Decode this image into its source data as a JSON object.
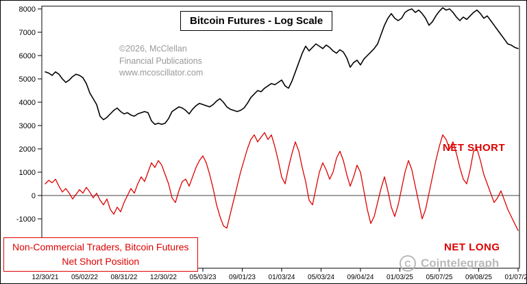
{
  "copyright": {
    "lines": [
      "©2026, McClellan",
      "Financial Publications",
      "www.mcoscillator.com"
    ]
  },
  "legend_box": {
    "line1": "Non-Commercial Traders, Bitcoin Futures",
    "line2": "Net Short Position"
  },
  "watermark": {
    "icon": "C",
    "text": "Cointelegraph"
  },
  "colors": {
    "accent_red": "#dd0000",
    "price_black": "#000000",
    "copyright_gray": "#999999",
    "watermark_gray": "#b4b4b4"
  },
  "chart_data": {
    "type": "line",
    "title": "Bitcoin Futures - Log Scale",
    "grid": false,
    "legend_position": "none",
    "ylim": [
      -3118,
      8118
    ],
    "y_tick_labels": [
      8000,
      7000,
      6000,
      5000,
      4000,
      3000,
      2000,
      1000,
      0,
      -1000
    ],
    "x_tick_labels": [
      "12/30/21",
      "05/02/22",
      "08/31/22",
      "12/30/22",
      "05/03/23",
      "09/01/23",
      "01/03/24",
      "05/03/24",
      "09/04/24",
      "01/03/25",
      "05/07/25",
      "09/08/25",
      "01/07/26"
    ],
    "annotations": [
      {
        "text": "NET SHORT",
        "color": "#dd0000",
        "position": "right-middle"
      },
      {
        "text": "NET LONG",
        "color": "#dd0000",
        "position": "right-bottom"
      }
    ],
    "series": [
      {
        "name": "Bitcoin Futures price (log scale)",
        "color": "#000000",
        "values": [
          5300,
          5250,
          5150,
          5300,
          5200,
          5000,
          4850,
          4950,
          5100,
          5200,
          5150,
          5050,
          4800,
          4400,
          4150,
          3900,
          3400,
          3250,
          3350,
          3500,
          3650,
          3750,
          3600,
          3500,
          3550,
          3450,
          3400,
          3500,
          3550,
          3600,
          3550,
          3200,
          3050,
          3100,
          3050,
          3100,
          3300,
          3600,
          3700,
          3800,
          3750,
          3650,
          3500,
          3700,
          3850,
          3950,
          3900,
          3850,
          3800,
          3900,
          4050,
          4150,
          4000,
          3800,
          3700,
          3650,
          3600,
          3650,
          3750,
          3950,
          4200,
          4350,
          4500,
          4450,
          4600,
          4700,
          4800,
          4750,
          4850,
          4950,
          4700,
          4600,
          4900,
          5300,
          5700,
          6100,
          6400,
          6200,
          6350,
          6500,
          6400,
          6300,
          6450,
          6350,
          6200,
          6100,
          6250,
          6150,
          5900,
          5500,
          5700,
          5800,
          5600,
          5850,
          6000,
          6150,
          6300,
          6500,
          6900,
          7300,
          7600,
          7800,
          7600,
          7500,
          7600,
          7850,
          7950,
          8000,
          7850,
          7950,
          7800,
          7600,
          7300,
          7450,
          7700,
          7900,
          8050,
          7950,
          8000,
          7850,
          7650,
          7500,
          7650,
          7550,
          7700,
          7850,
          7950,
          7800,
          7600,
          7700,
          7500,
          7300,
          7100,
          6900,
          6700,
          6500,
          6450,
          6350,
          6300
        ]
      },
      {
        "name": "Non-Commercial Traders Net Short Position",
        "color": "#dd0000",
        "values": [
          500,
          650,
          550,
          700,
          400,
          150,
          300,
          100,
          -150,
          50,
          250,
          100,
          350,
          150,
          -100,
          100,
          -200,
          -400,
          -150,
          -600,
          -800,
          -500,
          -700,
          -300,
          0,
          300,
          100,
          500,
          800,
          600,
          1000,
          1400,
          1200,
          1500,
          1300,
          900,
          500,
          -100,
          -300,
          200,
          600,
          700,
          400,
          800,
          1200,
          1500,
          1700,
          1400,
          900,
          300,
          -400,
          -900,
          -1300,
          -1400,
          -800,
          -200,
          400,
          1000,
          1500,
          2000,
          2400,
          2600,
          2300,
          2500,
          2700,
          2400,
          2600,
          2100,
          1500,
          800,
          500,
          1200,
          1800,
          2300,
          1900,
          1200,
          600,
          -200,
          -400,
          300,
          1000,
          1400,
          1100,
          700,
          1000,
          1600,
          1900,
          1500,
          900,
          400,
          800,
          1300,
          1000,
          200,
          -600,
          -1200,
          -900,
          -300,
          300,
          800,
          200,
          -500,
          -900,
          -400,
          300,
          1000,
          1500,
          1100,
          400,
          -300,
          -1000,
          -600,
          100,
          800,
          1500,
          2100,
          2600,
          2400,
          2000,
          2300,
          1800,
          1200,
          700,
          500,
          1100,
          1900,
          2000,
          1500,
          900,
          500,
          100,
          -300,
          -100,
          200,
          -200,
          -600,
          -900,
          -1200,
          -1500
        ]
      }
    ]
  }
}
